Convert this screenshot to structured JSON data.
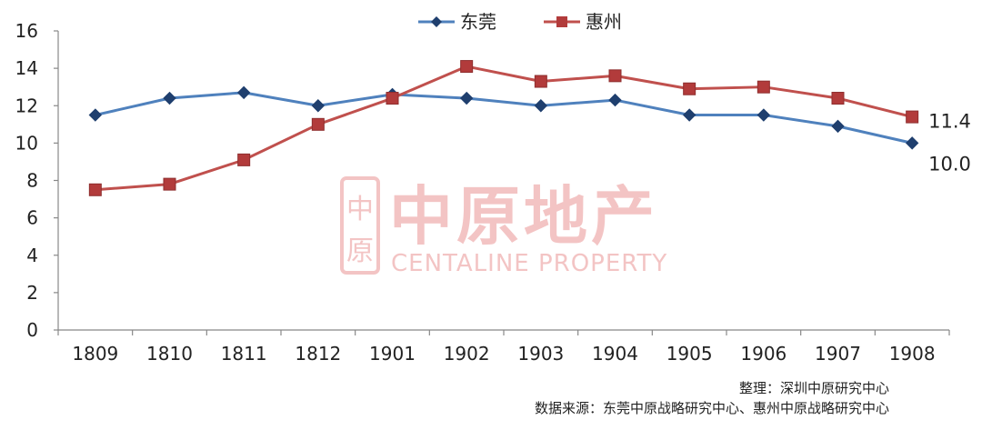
{
  "chart_data": {
    "type": "line",
    "categories": [
      "1809",
      "1810",
      "1811",
      "1812",
      "1901",
      "1902",
      "1903",
      "1904",
      "1905",
      "1906",
      "1907",
      "1908"
    ],
    "ylim": [
      0,
      16
    ],
    "yticks": [
      0,
      2,
      4,
      6,
      8,
      10,
      12,
      14,
      16
    ],
    "grid": false,
    "legend_position": "top-center",
    "series": [
      {
        "name": "东莞",
        "color": "#4F81BD",
        "marker": "diamond",
        "values": [
          11.5,
          12.4,
          12.7,
          12.0,
          12.6,
          12.4,
          12.0,
          12.3,
          11.5,
          11.5,
          10.9,
          10.0
        ]
      },
      {
        "name": "惠州",
        "color": "#C0504D",
        "marker": "square",
        "values": [
          7.5,
          7.8,
          9.1,
          11.0,
          12.4,
          14.1,
          13.3,
          13.6,
          12.9,
          13.0,
          12.4,
          11.4
        ]
      }
    ],
    "end_labels": [
      "10.0",
      "11.4"
    ]
  },
  "watermark": {
    "cn": "中原地产",
    "en": "CENTALINE PROPERTY",
    "logo_chars": [
      "中",
      "原"
    ]
  },
  "notes": {
    "compiled_by": "整理：深圳中原研究中心",
    "source": "数据来源：东莞中原战略研究中心、惠州中原战略研究中心"
  }
}
